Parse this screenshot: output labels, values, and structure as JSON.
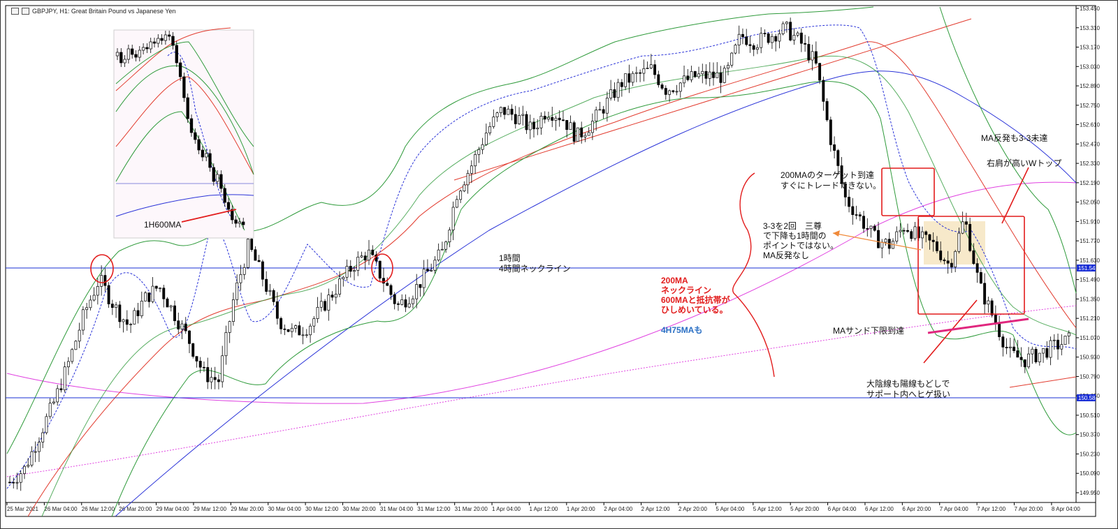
{
  "window": {
    "title": "GBPJPY, H1:  Great Britain Pound vs Japanese Yen"
  },
  "chart_data": {
    "type": "candlestick",
    "symbol": "GBPJPY",
    "timeframe": "H1",
    "ylim": [
      149.8,
      153.45
    ],
    "y_ticks": [
      "153.450",
      "153.310",
      "153.170",
      "153.030",
      "152.890",
      "152.750",
      "152.610",
      "152.470",
      "152.330",
      "152.190",
      "152.050",
      "151.910",
      "151.770",
      "151.630",
      "151.490",
      "151.350",
      "151.210",
      "151.070",
      "150.930",
      "150.790",
      "150.650",
      "150.510",
      "150.370",
      "150.230",
      "150.090",
      "149.950"
    ],
    "x_ticks": [
      "25 Mar 2021",
      "26 Mar 04:00",
      "26 Mar 12:00",
      "26 Mar 20:00",
      "29 Mar 04:00",
      "29 Mar 12:00",
      "29 Mar 20:00",
      "30 Mar 04:00",
      "30 Mar 12:00",
      "30 Mar 20:00",
      "31 Mar 04:00",
      "31 Mar 12:00",
      "31 Mar 20:00",
      "1 Apr 04:00",
      "1 Apr 12:00",
      "1 Apr 20:00",
      "2 Apr 04:00",
      "2 Apr 12:00",
      "2 Apr 20:00",
      "5 Apr 04:00",
      "5 Apr 12:00",
      "5 Apr 20:00",
      "6 Apr 04:00",
      "6 Apr 12:00",
      "6 Apr 20:00",
      "7 Apr 04:00",
      "7 Apr 12:00",
      "7 Apr 20:00",
      "8 Apr 04:00"
    ],
    "horizontal_lines": [
      {
        "price": 151.54,
        "label": "151.54",
        "color": "#1a2fd6"
      },
      {
        "price": 150.58,
        "label": "150.58",
        "color": "#1a2fd6"
      }
    ],
    "close_path": [
      149.95,
      150.05,
      150.3,
      150.55,
      150.85,
      151.2,
      151.45,
      151.25,
      151.1,
      151.3,
      151.4,
      151.2,
      151.0,
      150.75,
      150.7,
      151.3,
      151.7,
      151.45,
      151.15,
      151.05,
      151.1,
      151.25,
      151.4,
      151.55,
      151.65,
      151.45,
      151.25,
      151.35,
      151.5,
      151.65,
      152.1,
      152.3,
      152.55,
      152.7,
      152.65,
      152.55,
      152.7,
      152.65,
      152.5,
      152.6,
      152.75,
      152.9,
      152.95,
      153.0,
      152.85,
      152.9,
      152.95,
      152.95,
      152.95,
      153.25,
      153.2,
      153.25,
      153.3,
      153.2,
      153.05,
      152.5,
      152.05,
      151.9,
      151.75,
      151.7,
      151.85,
      151.75,
      151.7,
      151.55,
      151.9,
      151.4,
      151.15,
      150.9,
      150.85,
      150.9,
      150.95,
      151.0
    ]
  },
  "annotations": {
    "inset_label": "1H600MA",
    "neckline_line1": "1時間",
    "neckline_line2": "4時間ネックライン",
    "ma200_line1": "200MAのターゲット到達",
    "ma200_line2": "すぐにトレードできない。",
    "three_line1": "3-3を2回　三尊",
    "three_line2": "で下降も1時間の",
    "three_line3": "ポイントではない。",
    "three_line4": "MA反発なし",
    "red_line1": "200MA",
    "red_line2": "ネックライン",
    "red_line3": "600MAと抵抗帯が",
    "red_line4": "ひしめいている。",
    "blue_label": "4H75MAも",
    "ma_rebound": "MA反発も3-3未達",
    "w_top": "右肩が高いWトップ",
    "ma_sand": "MAサンド下限到達",
    "big_bear1": "大陰線も陽線もどしで",
    "big_bear2": "サポート内へヒゲ扱い"
  },
  "colors": {
    "bollinger": "#2e9a3a",
    "ma_red": "#e23b2e",
    "ma_blue": "#2a33d8",
    "ma_magenta": "#e040e0",
    "neckline": "#1a2fd6",
    "highlight": "#f4e2b8",
    "annotation_red": "#e21c1c"
  }
}
